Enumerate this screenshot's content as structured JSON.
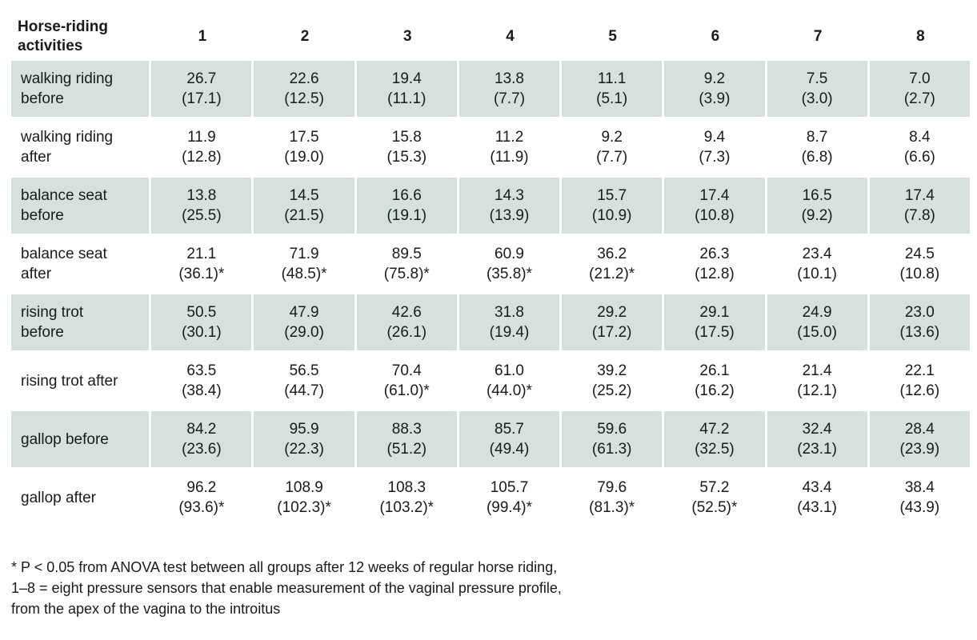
{
  "table": {
    "header": {
      "activity_line1": "Horse-riding",
      "activity_line2": "activities",
      "sensors": [
        "1",
        "2",
        "3",
        "4",
        "5",
        "6",
        "7",
        "8"
      ]
    },
    "rows": [
      {
        "label1": "walking riding",
        "label2": "before",
        "shaded": true,
        "cells": [
          {
            "mean": "26.7",
            "sd": "(17.1)"
          },
          {
            "mean": "22.6",
            "sd": "(12.5)"
          },
          {
            "mean": "19.4",
            "sd": "(11.1)"
          },
          {
            "mean": "13.8",
            "sd": "(7.7)"
          },
          {
            "mean": "11.1",
            "sd": "(5.1)"
          },
          {
            "mean": "9.2",
            "sd": "(3.9)"
          },
          {
            "mean": "7.5",
            "sd": "(3.0)"
          },
          {
            "mean": "7.0",
            "sd": "(2.7)"
          }
        ]
      },
      {
        "label1": "walking riding",
        "label2": "after",
        "shaded": false,
        "cells": [
          {
            "mean": "11.9",
            "sd": "(12.8)"
          },
          {
            "mean": "17.5",
            "sd": "(19.0)"
          },
          {
            "mean": "15.8",
            "sd": "(15.3)"
          },
          {
            "mean": "11.2",
            "sd": "(11.9)"
          },
          {
            "mean": "9.2",
            "sd": "(7.7)"
          },
          {
            "mean": "9.4",
            "sd": "(7.3)"
          },
          {
            "mean": "8.7",
            "sd": "(6.8)"
          },
          {
            "mean": "8.4",
            "sd": "(6.6)"
          }
        ]
      },
      {
        "label1": "balance seat",
        "label2": "before",
        "shaded": true,
        "cells": [
          {
            "mean": "13.8",
            "sd": "(25.5)"
          },
          {
            "mean": "14.5",
            "sd": "(21.5)"
          },
          {
            "mean": "16.6",
            "sd": "(19.1)"
          },
          {
            "mean": "14.3",
            "sd": "(13.9)"
          },
          {
            "mean": "15.7",
            "sd": "(10.9)"
          },
          {
            "mean": "17.4",
            "sd": "(10.8)"
          },
          {
            "mean": "16.5",
            "sd": "(9.2)"
          },
          {
            "mean": "17.4",
            "sd": "(7.8)"
          }
        ]
      },
      {
        "label1": "balance seat",
        "label2": "after",
        "shaded": false,
        "cells": [
          {
            "mean": "21.1",
            "sd": "(36.1)*"
          },
          {
            "mean": "71.9",
            "sd": "(48.5)*"
          },
          {
            "mean": "89.5",
            "sd": "(75.8)*"
          },
          {
            "mean": "60.9",
            "sd": "(35.8)*"
          },
          {
            "mean": "36.2",
            "sd": "(21.2)*"
          },
          {
            "mean": "26.3",
            "sd": "(12.8)"
          },
          {
            "mean": "23.4",
            "sd": "(10.1)"
          },
          {
            "mean": "24.5",
            "sd": "(10.8)"
          }
        ]
      },
      {
        "label1": "rising trot",
        "label2": "before",
        "shaded": true,
        "cells": [
          {
            "mean": "50.5",
            "sd": "(30.1)"
          },
          {
            "mean": "47.9",
            "sd": "(29.0)"
          },
          {
            "mean": "42.6",
            "sd": "(26.1)"
          },
          {
            "mean": "31.8",
            "sd": "(19.4)"
          },
          {
            "mean": "29.2",
            "sd": "(17.2)"
          },
          {
            "mean": "29.1",
            "sd": "(17.5)"
          },
          {
            "mean": "24.9",
            "sd": "(15.0)"
          },
          {
            "mean": "23.0",
            "sd": "(13.6)"
          }
        ]
      },
      {
        "label1": "rising trot after",
        "label2": "",
        "shaded": false,
        "cells": [
          {
            "mean": "63.5",
            "sd": "(38.4)"
          },
          {
            "mean": "56.5",
            "sd": "(44.7)"
          },
          {
            "mean": "70.4",
            "sd": "(61.0)*"
          },
          {
            "mean": "61.0",
            "sd": "(44.0)*"
          },
          {
            "mean": "39.2",
            "sd": "(25.2)"
          },
          {
            "mean": "26.1",
            "sd": "(16.2)"
          },
          {
            "mean": "21.4",
            "sd": "(12.1)"
          },
          {
            "mean": "22.1",
            "sd": "(12.6)"
          }
        ]
      },
      {
        "label1": "gallop before",
        "label2": "",
        "shaded": true,
        "cells": [
          {
            "mean": "84.2",
            "sd": "(23.6)"
          },
          {
            "mean": "95.9",
            "sd": "(22.3)"
          },
          {
            "mean": "88.3",
            "sd": "(51.2)"
          },
          {
            "mean": "85.7",
            "sd": "(49.4)"
          },
          {
            "mean": "59.6",
            "sd": "(61.3)"
          },
          {
            "mean": "47.2",
            "sd": "(32.5)"
          },
          {
            "mean": "32.4",
            "sd": "(23.1)"
          },
          {
            "mean": "28.4",
            "sd": "(23.9)"
          }
        ]
      },
      {
        "label1": "gallop after",
        "label2": "",
        "shaded": false,
        "cells": [
          {
            "mean": "96.2",
            "sd": "(93.6)*"
          },
          {
            "mean": "108.9",
            "sd": "(102.3)*"
          },
          {
            "mean": "108.3",
            "sd": "(103.2)*"
          },
          {
            "mean": "105.7",
            "sd": "(99.4)*"
          },
          {
            "mean": "79.6",
            "sd": "(81.3)*"
          },
          {
            "mean": "57.2",
            "sd": "(52.5)*"
          },
          {
            "mean": "43.4",
            "sd": "(43.1)"
          },
          {
            "mean": "38.4",
            "sd": "(43.9)"
          }
        ]
      }
    ],
    "shade_color": "#d6e0dc"
  },
  "footnote": {
    "line1": "* P < 0.05 from ANOVA test between all groups after 12 weeks of regular horse riding,",
    "line2": "1–8 = eight pressure sensors that enable measurement of the vaginal pressure profile,",
    "line3": "from the apex of the vagina to the introitus"
  }
}
